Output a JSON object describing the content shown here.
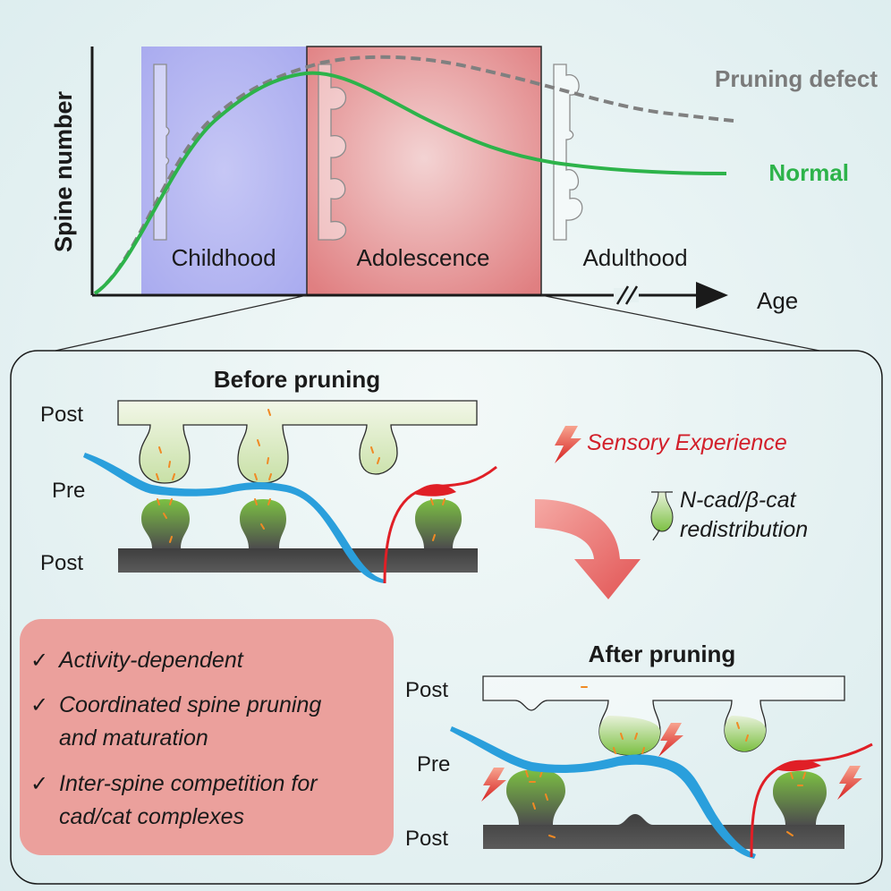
{
  "graph": {
    "y_axis_label": "Spine number",
    "x_axis_label": "Age",
    "phases": [
      "Childhood",
      "Adolescence",
      "Adulthood"
    ],
    "curves": {
      "defect": {
        "label": "Pruning defect",
        "color": "#808080"
      },
      "normal": {
        "label": "Normal",
        "color": "#2db34a"
      }
    }
  },
  "detail": {
    "before": {
      "title": "Before pruning",
      "post_top": "Post",
      "pre": "Pre",
      "post_bottom": "Post"
    },
    "after": {
      "title": "After pruning",
      "post_top": "Post",
      "pre": "Pre",
      "post_bottom": "Post"
    },
    "sensory_experience": "Sensory Experience",
    "legend": {
      "line1": "N-cad/β-cat",
      "line2": "redistribution"
    },
    "summary": {
      "items": [
        [
          "Activity-dependent"
        ],
        [
          "Coordinated spine pruning",
          "and maturation"
        ],
        [
          "Inter-spine competition for",
          "cad/cat complexes"
        ]
      ]
    }
  },
  "colors": {
    "childhood": "#b8b9f2",
    "adolescence": "#e8999a",
    "axon_blue": "#2a9fdc",
    "axon_red": "#e01f26",
    "spine_green": "#7cc043",
    "dendrite_dark": "#4d4d4d",
    "arrow_red": "#e56a6a",
    "summary_box": "#eba09c",
    "lightning": "#e63323"
  }
}
